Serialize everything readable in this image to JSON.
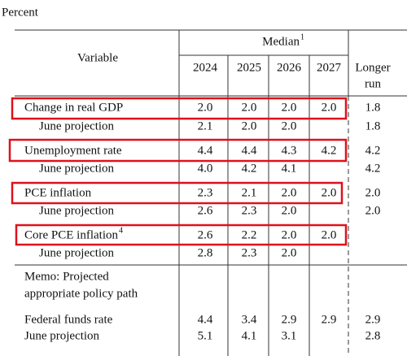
{
  "header": {
    "unit": "Percent",
    "variable": "Variable",
    "median": "Median",
    "median_note": "1",
    "years": [
      "2024",
      "2025",
      "2026",
      "2027"
    ],
    "longer_run": [
      "Longer",
      "run"
    ]
  },
  "table": {
    "rows": [
      {
        "label": "Change in real GDP",
        "values": [
          "2.0",
          "2.0",
          "2.0",
          "2.0"
        ],
        "longer_run": "1.8"
      },
      {
        "label": "June projection",
        "values": [
          "2.1",
          "2.0",
          "2.0"
        ],
        "longer_run": "1.8"
      },
      {
        "label": "Unemployment rate",
        "values": [
          "4.4",
          "4.4",
          "4.3",
          "4.2"
        ],
        "longer_run": "4.2"
      },
      {
        "label": "June projection",
        "values": [
          "4.0",
          "4.2",
          "4.1"
        ],
        "longer_run": "4.2"
      },
      {
        "label": "PCE inflation",
        "values": [
          "2.3",
          "2.1",
          "2.0",
          "2.0"
        ],
        "longer_run": "2.0"
      },
      {
        "label": "June projection",
        "values": [
          "2.6",
          "2.3",
          "2.0"
        ],
        "longer_run": "2.0"
      },
      {
        "label": "Core PCE inflation",
        "note": "4",
        "values": [
          "2.6",
          "2.2",
          "2.0",
          "2.0"
        ]
      },
      {
        "label": "June projection",
        "values": [
          "2.8",
          "2.3",
          "2.0"
        ]
      },
      {
        "label": [
          "Memo: Projected",
          "appropriate policy path"
        ]
      },
      {
        "label": "Federal funds rate",
        "values": [
          "4.4",
          "3.4",
          "2.9",
          "2.9"
        ],
        "longer_run": "2.9"
      },
      {
        "label": "June projection",
        "values": [
          "5.1",
          "4.1",
          "3.1"
        ],
        "longer_run": "2.8"
      }
    ]
  }
}
